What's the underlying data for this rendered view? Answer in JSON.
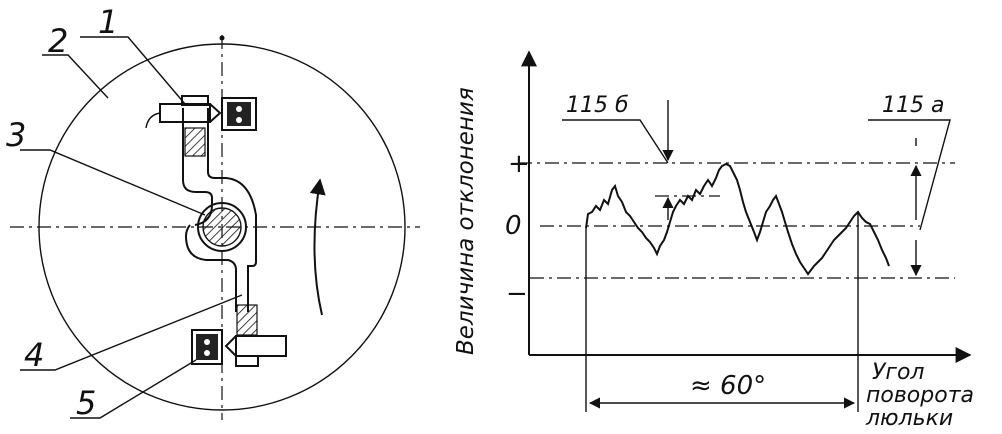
{
  "left_figure": {
    "labels": [
      "1",
      "2",
      "3",
      "4",
      "5"
    ]
  },
  "right_figure": {
    "y_axis_label": "Величина отклонения",
    "level_plus": "+",
    "level_zero": "0",
    "level_minus": "−",
    "callout_b": "115 б",
    "callout_a": "115 а",
    "span_label": "≈ 60°",
    "x_axis_label_lines": [
      "Угол",
      "поворота",
      "люльки"
    ]
  }
}
